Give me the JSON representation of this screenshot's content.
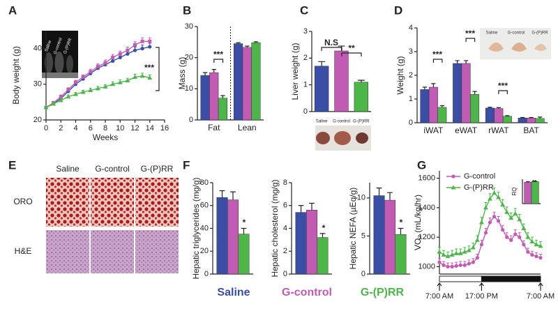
{
  "chart_data": [
    {
      "panel": "A",
      "type": "line",
      "y_label": "Body weight (g)",
      "x_label": "Weeks",
      "x": [
        0,
        1,
        2,
        3,
        4,
        5,
        6,
        7,
        8,
        9,
        10,
        11,
        12,
        13,
        14
      ],
      "xlim": [
        0,
        16
      ],
      "xticks": [
        0,
        2,
        4,
        6,
        8,
        10,
        12,
        14,
        16
      ],
      "ylim": [
        20,
        45
      ],
      "yticks": [
        20,
        30,
        40
      ],
      "series": [
        {
          "color": "#3b4ea6",
          "marker": "circle",
          "values": [
            23.5,
            24.5,
            26,
            28,
            30,
            31.5,
            33,
            34.5,
            35.5,
            36.5,
            37.5,
            38.5,
            39.5,
            40,
            40.5
          ],
          "errors": [
            0.3,
            0.4,
            0.5,
            0.5,
            0.6,
            0.6,
            0.7,
            0.7,
            0.8,
            0.8,
            0.8,
            0.9,
            0.9,
            1,
            1
          ]
        },
        {
          "color": "#c25bb4",
          "marker": "square",
          "values": [
            23.5,
            24.8,
            26.5,
            28.5,
            30.5,
            32,
            33.5,
            35,
            36,
            37.5,
            38.5,
            39.5,
            41,
            42,
            42
          ],
          "errors": [
            0.3,
            0.4,
            0.5,
            0.5,
            0.6,
            0.6,
            0.7,
            0.7,
            0.8,
            0.8,
            0.8,
            0.9,
            0.9,
            1,
            1
          ]
        },
        {
          "color": "#4cb648",
          "marker": "triangle",
          "values": [
            23.5,
            24.5,
            25.5,
            26.5,
            27.2,
            27.8,
            28.3,
            28.8,
            29.3,
            30,
            30.5,
            31,
            32,
            32.3,
            31.8
          ],
          "errors": [
            0.3,
            0.4,
            0.4,
            0.5,
            0.5,
            0.5,
            0.6,
            0.6,
            0.6,
            0.7,
            0.7,
            0.7,
            0.8,
            0.8,
            0.8
          ]
        }
      ],
      "annotations": [
        "***"
      ],
      "inset_labels": [
        "Saline",
        "G-control",
        "G-(P)RR"
      ]
    },
    {
      "panel": "B",
      "type": "bar",
      "y_label": "Mass (g)",
      "categories": [
        "Fat",
        "Lean"
      ],
      "ylim": [
        0,
        30
      ],
      "yticks": [
        0,
        10,
        20,
        30
      ],
      "divider": true,
      "series": [
        {
          "color": "#3b4ea6",
          "values": [
            14.3,
            24.5
          ],
          "errors": [
            0.9,
            0.3
          ]
        },
        {
          "color": "#c25bb4",
          "values": [
            15.2,
            23.3
          ],
          "errors": [
            1,
            0.4
          ]
        },
        {
          "color": "#4cb648",
          "values": [
            7,
            24.8
          ],
          "errors": [
            0.8,
            0.3
          ]
        }
      ],
      "annotations": [
        "***"
      ]
    },
    {
      "panel": "C",
      "type": "bar",
      "y_label": "Liver weight (g)",
      "categories": [
        "Saline",
        "G-control",
        "G-(P)RR"
      ],
      "ylim": [
        0,
        3
      ],
      "yticks": [
        0,
        1,
        2,
        3
      ],
      "values": [
        1.7,
        2.27,
        1.1
      ],
      "errors": [
        0.17,
        0.18,
        0.07
      ],
      "colors": [
        "#3b4ea6",
        "#c25bb4",
        "#4cb648"
      ],
      "annotations": [
        "N.S",
        "**"
      ]
    },
    {
      "panel": "D",
      "type": "bar",
      "y_label": "Weight (g)",
      "categories": [
        "iWAT",
        "eWAT",
        "rWAT",
        "BAT"
      ],
      "ylim": [
        0,
        4
      ],
      "yticks": [
        0,
        1,
        2,
        3,
        4
      ],
      "series": [
        {
          "color": "#3b4ea6",
          "values": [
            1.4,
            2.5,
            0.62,
            0.2
          ],
          "errors": [
            0.1,
            0.12,
            0.03,
            0.02
          ]
        },
        {
          "color": "#c25bb4",
          "values": [
            1.5,
            2.5,
            0.6,
            0.2
          ],
          "errors": [
            0.15,
            0.12,
            0.04,
            0.02
          ]
        },
        {
          "color": "#4cb648",
          "values": [
            0.65,
            1.2,
            0.27,
            0.18
          ],
          "errors": [
            0.07,
            0.12,
            0.03,
            0.06
          ]
        }
      ],
      "annotations": [
        "***",
        "***",
        "***"
      ],
      "inset_labels": [
        "Saline",
        "G-control",
        "G-(P)RR"
      ]
    },
    {
      "panel": "E",
      "type": "image",
      "columns": [
        "Saline",
        "G-control",
        "G-(P)RR"
      ],
      "rows": [
        "ORO",
        "H&E"
      ]
    },
    {
      "panel": "F",
      "type": "bar",
      "y_label": "Hepatic triglycerides (mg/g)",
      "categories": [
        null
      ],
      "ylim": [
        0,
        80
      ],
      "yticks": [
        0,
        20,
        40,
        60,
        80
      ],
      "series": [
        {
          "name": "Saline",
          "color": "#3b4ea6",
          "values": [
            67
          ],
          "errors": [
            6
          ]
        },
        {
          "name": "G-control",
          "color": "#c25bb4",
          "values": [
            65
          ],
          "errors": [
            7
          ]
        },
        {
          "name": "G-(P)RR",
          "color": "#4cb648",
          "values": [
            35
          ],
          "errors": [
            5
          ]
        }
      ],
      "annotations": [
        "*"
      ]
    },
    {
      "type": "bar",
      "y_label": "Hepatic cholesterol (mg/g)",
      "categories": [
        null
      ],
      "ylim": [
        0,
        8
      ],
      "yticks": [
        0,
        2,
        4,
        6,
        8
      ],
      "series": [
        {
          "color": "#3b4ea6",
          "values": [
            5.4
          ],
          "errors": [
            0.6
          ]
        },
        {
          "color": "#c25bb4",
          "values": [
            5.6
          ],
          "errors": [
            0.6
          ]
        },
        {
          "color": "#4cb648",
          "values": [
            3.2
          ],
          "errors": [
            0.35
          ]
        }
      ],
      "annotations": [
        "*"
      ]
    },
    {
      "type": "bar",
      "y_label": "Hepatic NEFA (µEq/g)",
      "categories": [
        null
      ],
      "ylim": [
        0,
        12
      ],
      "yticks": [
        0,
        5,
        10
      ],
      "series": [
        {
          "color": "#3b4ea6",
          "values": [
            10.3
          ],
          "errors": [
            1
          ]
        },
        {
          "color": "#c25bb4",
          "values": [
            9.7
          ],
          "errors": [
            1
          ]
        },
        {
          "color": "#4cb648",
          "values": [
            5.2
          ],
          "errors": [
            0.8
          ]
        }
      ],
      "annotations": [
        "*"
      ]
    },
    {
      "panel": "G",
      "type": "line",
      "y_label": "VO₂ (mL/kg/hr)",
      "x": [
        0,
        1,
        2,
        3,
        4,
        5,
        6,
        7,
        8,
        9,
        10,
        11,
        12,
        13,
        14,
        15,
        16,
        17,
        18,
        19,
        20,
        21,
        22,
        23,
        24
      ],
      "xlim": [
        0,
        24
      ],
      "xticks": [
        {
          "value": 0,
          "label": "7:00 AM"
        },
        {
          "value": 10,
          "label": "17:00 PM"
        },
        {
          "value": 24,
          "label": "7:00 AM"
        }
      ],
      "ylim": [
        950,
        1650
      ],
      "yticks": [
        1000,
        1200,
        1400,
        1600
      ],
      "legend": "upper left",
      "series": [
        {
          "name": "G-control",
          "color": "#c25bb4",
          "marker": "circle",
          "values": [
            1030,
            1010,
            1000,
            1000,
            1005,
            1010,
            1010,
            1020,
            1030,
            1060,
            1150,
            1230,
            1300,
            1340,
            1310,
            1250,
            1200,
            1180,
            1220,
            1200,
            1150,
            1100,
            1080,
            1070,
            1060
          ],
          "errors": [
            25,
            25,
            25,
            25,
            25,
            25,
            25,
            25,
            25,
            25,
            30,
            30,
            30,
            30,
            30,
            30,
            30,
            30,
            30,
            30,
            25,
            25,
            25,
            25,
            25
          ]
        },
        {
          "name": "G-(P)RR",
          "color": "#4cb648",
          "marker": "triangle",
          "values": [
            1100,
            1080,
            1070,
            1080,
            1090,
            1090,
            1100,
            1110,
            1130,
            1180,
            1300,
            1400,
            1460,
            1500,
            1470,
            1420,
            1370,
            1330,
            1360,
            1320,
            1260,
            1200,
            1170,
            1150,
            1140
          ],
          "errors": [
            30,
            30,
            30,
            30,
            30,
            30,
            30,
            30,
            30,
            30,
            35,
            35,
            35,
            35,
            35,
            35,
            35,
            35,
            35,
            35,
            30,
            30,
            30,
            30,
            30
          ]
        }
      ],
      "inset": {
        "type": "bar",
        "y_label": "RQ",
        "categories": [
          null
        ],
        "ylim": [
          0,
          1
        ],
        "series": [
          {
            "color": "#c25bb4",
            "values": [
              0.88
            ],
            "errors": [
              0.02
            ]
          },
          {
            "color": "#4cb648",
            "values": [
              0.9
            ],
            "errors": [
              0.02
            ]
          }
        ],
        "annotations": [
          "**"
        ]
      }
    }
  ]
}
